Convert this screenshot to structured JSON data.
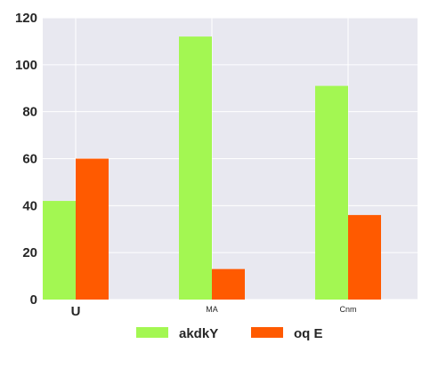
{
  "chart_data": {
    "type": "bar",
    "categories": [
      "U",
      "MA",
      "Cnm"
    ],
    "series": [
      {
        "name": "akdkY",
        "values": [
          42,
          112,
          91
        ],
        "color": "#A3F752"
      },
      {
        "name": "oq E",
        "values": [
          60,
          13,
          36
        ],
        "color": "#FF5A00"
      }
    ],
    "ylim": [
      0,
      120
    ],
    "yticks": [
      0,
      20,
      40,
      60,
      80,
      100,
      120
    ],
    "grid": true,
    "legend_position": "bottom",
    "plot_background": "#E8E8F0",
    "grid_color": "#FFFFFF"
  }
}
